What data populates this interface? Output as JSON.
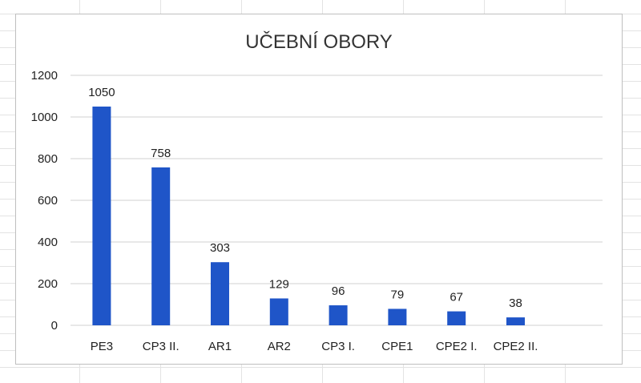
{
  "chart_data": {
    "type": "bar",
    "title": "UČEBNÍ OBORY",
    "xlabel": "",
    "ylabel": "",
    "categories": [
      "PE3",
      "CP3 II.",
      "AR1",
      "AR2",
      "CP3 I.",
      "CPE1",
      "CPE2 I.",
      "CPE2 II."
    ],
    "values": [
      1050,
      758,
      303,
      129,
      96,
      79,
      67,
      38
    ],
    "ylim": [
      0,
      1200
    ],
    "yticks": [
      0,
      200,
      400,
      600,
      800,
      1000,
      1200
    ],
    "grid": true,
    "legend": "none",
    "bar_color": "#1f55c8",
    "grid_color": "#d0d0d0"
  }
}
